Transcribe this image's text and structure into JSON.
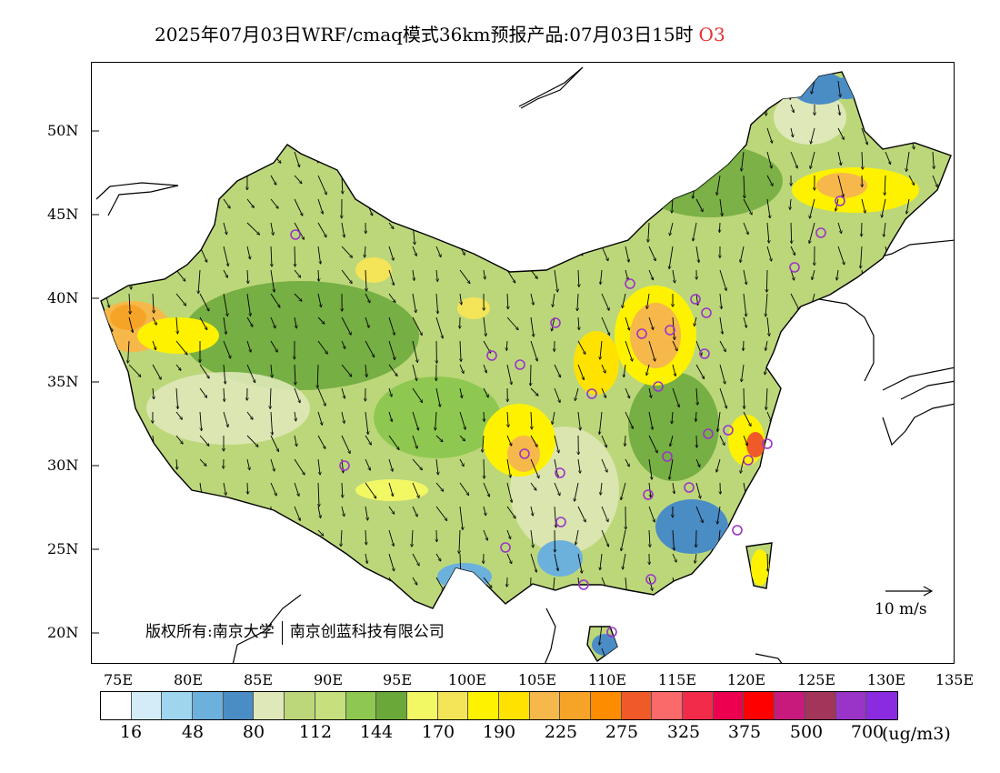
{
  "title": {
    "text": "2025年07月03日WRF/cmaq模式36km预报产品:07月03日15时",
    "species": "O3"
  },
  "map": {
    "lat_labels": [
      "50N",
      "45N",
      "40N",
      "35N",
      "30N",
      "25N",
      "20N"
    ],
    "lon_labels": [
      "75E",
      "80E",
      "85E",
      "90E",
      "95E",
      "100E",
      "105E",
      "110E",
      "115E",
      "120E",
      "125E",
      "130E",
      "135E"
    ],
    "copyright": {
      "left": "版权所有:南京大学",
      "right": "南京创蓝科技有限公司"
    },
    "reference_vector": "10 m/s"
  },
  "legend": {
    "colors": [
      "#ffffff",
      "#d3ecf8",
      "#9ed6f0",
      "#6cb0dc",
      "#4a8cc4",
      "#dfe8b8",
      "#bcd77a",
      "#c5e07c",
      "#8ec850",
      "#6aa83a",
      "#f2f864",
      "#f4e458",
      "#fff200",
      "#ffe200",
      "#f6b84a",
      "#f6a428",
      "#fd8c00",
      "#f05a28",
      "#fa6a6a",
      "#f22b4a",
      "#ee0050",
      "#ff0000",
      "#c8197c",
      "#a3355a",
      "#9a34c8",
      "#8a2be2"
    ],
    "tick_labels": [
      "16",
      "48",
      "80",
      "112",
      "144",
      "170",
      "190",
      "225",
      "275",
      "325",
      "375",
      "500",
      "700"
    ],
    "unit": "(ug/m3)"
  }
}
